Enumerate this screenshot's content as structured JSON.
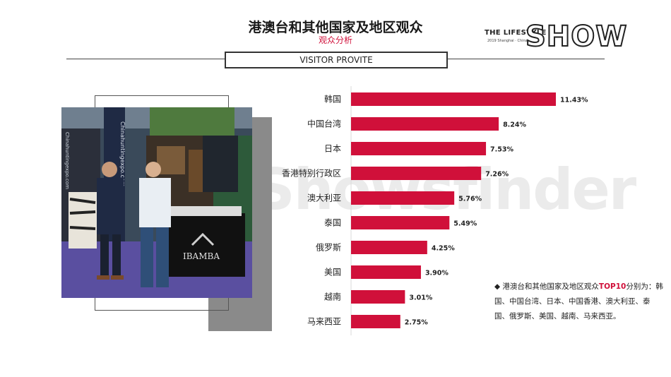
{
  "header": {
    "title": "港澳台和其他国家及地区观众",
    "subtitle": "观众分析",
    "section_tag": "VISITOR PROVITE"
  },
  "logo": {
    "line1": "THE LIFESTYLE",
    "line2": "2019 Shanghai · China",
    "brand": "SHOW"
  },
  "watermark": "Showsfinder",
  "photo": {
    "booth_text_1": "Chinahuntingexpo.com",
    "booth_text_2": "Chinahuntingexpo.com",
    "booth_logo": "IBAMBA"
  },
  "note": {
    "bullet": "◆",
    "prefix": "港澳台和其他国家及地区观众",
    "highlight": "TOP10",
    "suffix": "分别为：韩国、中国台湾、日本、中国香港、澳大利亚、泰国、俄罗斯、美国、越南、马来西亚。"
  },
  "colors": {
    "bar": "#d0103a",
    "accent": "#d0103a"
  },
  "chart_data": {
    "type": "bar",
    "orientation": "horizontal",
    "categories": [
      "韩国",
      "中国台湾",
      "日本",
      "香港特别行政区",
      "澳大利亚",
      "泰国",
      "俄罗斯",
      "美国",
      "越南",
      "马来西亚"
    ],
    "values": [
      11.43,
      8.24,
      7.53,
      7.26,
      5.76,
      5.49,
      4.25,
      3.9,
      3.01,
      2.75
    ],
    "value_labels": [
      "11.43%",
      "8.24%",
      "7.53%",
      "7.26%",
      "5.76%",
      "5.49%",
      "4.25%",
      "3.90%",
      "3.01%",
      "2.75%"
    ],
    "xlim": [
      0,
      11.43
    ],
    "grid": false,
    "legend": "none"
  }
}
